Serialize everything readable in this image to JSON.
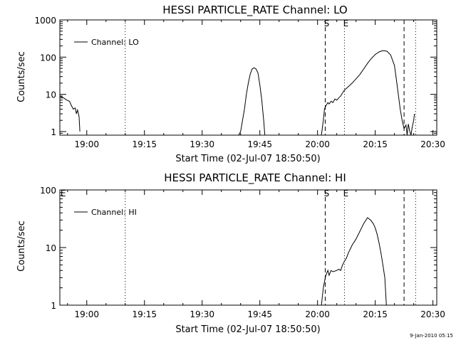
{
  "page": {
    "footer_date": "9-Jan-2010 05:15"
  },
  "chart_data": [
    {
      "type": "line",
      "title": "HESSI PARTICLE_RATE Channel: LO",
      "xlabel": "Start Time (02-Jul-07 18:50:50)",
      "ylabel": "Counts/sec",
      "y_scale": "log",
      "ylim": [
        0.8,
        1000
      ],
      "xlim_minutes": [
        53,
        151
      ],
      "x_ticks": [
        {
          "label": "19:00",
          "t": 60
        },
        {
          "label": "19:15",
          "t": 75
        },
        {
          "label": "19:30",
          "t": 90
        },
        {
          "label": "19:45",
          "t": 105
        },
        {
          "label": "20:00",
          "t": 120
        },
        {
          "label": "20:15",
          "t": 135
        },
        {
          "label": "20:30",
          "t": 150
        }
      ],
      "y_ticks": [
        {
          "label": "1",
          "v": 1
        },
        {
          "label": "10",
          "v": 10
        },
        {
          "label": "100",
          "v": 100
        },
        {
          "label": "1000",
          "v": 1000
        }
      ],
      "legend": {
        "label": "Channel: LO",
        "placement": "top-left"
      },
      "markers": [
        {
          "label": "",
          "t": 70,
          "style": "dotted"
        },
        {
          "label": "S",
          "t": 122,
          "style": "dashed"
        },
        {
          "label": "E",
          "t": 127,
          "style": "dotted"
        },
        {
          "label": "",
          "t": 142.5,
          "style": "dashed"
        },
        {
          "label": "",
          "t": 145.5,
          "style": "dotted"
        }
      ],
      "edge_labels": [],
      "series": [
        {
          "name": "Channel: LO",
          "segments": [
            [
              [
                53,
                9
              ],
              [
                54,
                8
              ],
              [
                54.8,
                7
              ],
              [
                55.5,
                6.5
              ],
              [
                56,
                5
              ],
              [
                56.5,
                4
              ],
              [
                57,
                4.3
              ],
              [
                57.3,
                3
              ],
              [
                57.6,
                3.8
              ],
              [
                58,
                2.5
              ],
              [
                58.2,
                1
              ]
            ],
            [
              [
                99.5,
                0.8
              ],
              [
                100,
                1
              ],
              [
                100.5,
                2
              ],
              [
                101,
                4
              ],
              [
                101.5,
                10
              ],
              [
                102,
                20
              ],
              [
                102.5,
                35
              ],
              [
                103,
                48
              ],
              [
                103.5,
                52
              ],
              [
                104,
                48
              ],
              [
                104.5,
                38
              ],
              [
                105,
                18
              ],
              [
                105.5,
                7
              ],
              [
                106,
                2
              ],
              [
                106.3,
                0.8
              ]
            ],
            [
              [
                121,
                0.8
              ],
              [
                121.5,
                2
              ],
              [
                121.8,
                4
              ],
              [
                122.2,
                5
              ],
              [
                122.7,
                6
              ],
              [
                123,
                5.5
              ],
              [
                123.5,
                6.5
              ],
              [
                124,
                6
              ],
              [
                124.5,
                7.5
              ],
              [
                125,
                7
              ],
              [
                125.5,
                8
              ],
              [
                126,
                9
              ],
              [
                126.5,
                11
              ],
              [
                127,
                13
              ],
              [
                128,
                16
              ],
              [
                129,
                20
              ],
              [
                130,
                26
              ],
              [
                131,
                34
              ],
              [
                132,
                48
              ],
              [
                133,
                68
              ],
              [
                134,
                92
              ],
              [
                135,
                118
              ],
              [
                136,
                138
              ],
              [
                137,
                150
              ],
              [
                138,
                145
              ],
              [
                139,
                115
              ],
              [
                140,
                60
              ],
              [
                140.5,
                25
              ],
              [
                141,
                10
              ],
              [
                141.5,
                4
              ],
              [
                142,
                2
              ],
              [
                142.5,
                1.2
              ],
              [
                143,
                1.5
              ],
              [
                143.3,
                0.8
              ],
              [
                143.6,
                1.6
              ],
              [
                144,
                1
              ],
              [
                144.3,
                0.8
              ],
              [
                144.6,
                1.3
              ],
              [
                145,
                2
              ],
              [
                145.2,
                3
              ]
            ]
          ]
        }
      ]
    },
    {
      "type": "line",
      "title": "HESSI PARTICLE_RATE Channel: HI",
      "xlabel": "Start Time (02-Jul-07 18:50:50)",
      "ylabel": "Counts/sec",
      "y_scale": "log",
      "ylim": [
        1,
        100
      ],
      "xlim_minutes": [
        53,
        151
      ],
      "x_ticks": [
        {
          "label": "19:00",
          "t": 60
        },
        {
          "label": "19:15",
          "t": 75
        },
        {
          "label": "19:30",
          "t": 90
        },
        {
          "label": "19:45",
          "t": 105
        },
        {
          "label": "20:00",
          "t": 120
        },
        {
          "label": "20:15",
          "t": 135
        },
        {
          "label": "20:30",
          "t": 150
        }
      ],
      "y_ticks": [
        {
          "label": "1",
          "v": 1
        },
        {
          "label": "10",
          "v": 10
        },
        {
          "label": "100",
          "v": 100
        }
      ],
      "legend": {
        "label": "Channel: HI",
        "placement": "top-left"
      },
      "markers": [
        {
          "label": "",
          "t": 70,
          "style": "dotted"
        },
        {
          "label": "S",
          "t": 122,
          "style": "dashed"
        },
        {
          "label": "E",
          "t": 127,
          "style": "dotted"
        },
        {
          "label": "",
          "t": 142.5,
          "style": "dashed"
        },
        {
          "label": "",
          "t": 145.5,
          "style": "dotted"
        }
      ],
      "edge_labels": [
        {
          "label": "E",
          "t": 53.3
        }
      ],
      "series": [
        {
          "name": "Channel: HI",
          "segments": [
            [
              [
                121,
                1
              ],
              [
                121.5,
                2
              ],
              [
                122,
                3
              ],
              [
                122.3,
                3.5
              ],
              [
                122.7,
                4
              ],
              [
                123,
                3.3
              ],
              [
                123.5,
                4
              ],
              [
                124,
                3.8
              ],
              [
                125,
                4
              ],
              [
                125.5,
                4.2
              ],
              [
                126,
                4
              ],
              [
                126.5,
                5
              ],
              [
                127,
                5.8
              ],
              [
                127.5,
                6.5
              ],
              [
                128,
                8
              ],
              [
                129,
                11
              ],
              [
                130,
                14
              ],
              [
                131,
                19
              ],
              [
                132,
                26
              ],
              [
                133,
                33
              ],
              [
                133.8,
                30
              ],
              [
                134.5,
                26
              ],
              [
                135,
                22
              ],
              [
                135.5,
                17
              ],
              [
                136,
                12
              ],
              [
                136.5,
                8
              ],
              [
                137,
                5
              ],
              [
                137.5,
                3
              ],
              [
                137.9,
                1
              ]
            ]
          ]
        }
      ]
    }
  ]
}
